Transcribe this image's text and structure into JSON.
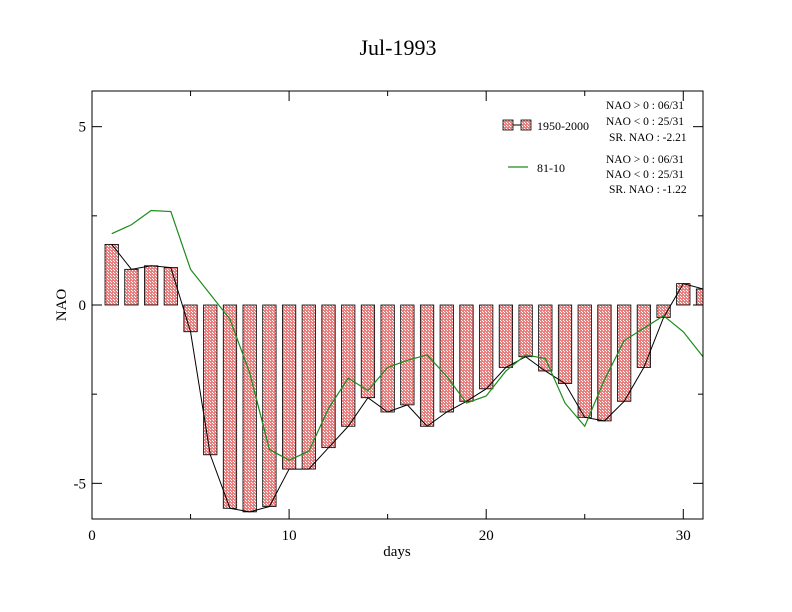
{
  "chart_data": {
    "type": "bar",
    "title": "Jul-1993",
    "xlabel": "days",
    "ylabel": "NAO",
    "xlim": [
      0,
      31
    ],
    "ylim": [
      -6,
      6
    ],
    "x_ticks": [
      0,
      10,
      20,
      30
    ],
    "y_ticks": [
      -5,
      0,
      5
    ],
    "x_tick_labels": [
      "0",
      "10",
      "20",
      "30"
    ],
    "y_tick_labels": [
      "-5",
      "0",
      "5"
    ],
    "x": [
      1,
      2,
      3,
      4,
      5,
      6,
      7,
      8,
      9,
      10,
      11,
      12,
      13,
      14,
      15,
      16,
      17,
      18,
      19,
      20,
      21,
      22,
      23,
      24,
      25,
      26,
      27,
      28,
      29,
      30,
      31
    ],
    "series": [
      {
        "name": "1950-2000",
        "type": "bar",
        "color": "#e07070",
        "values": [
          1.7,
          1.0,
          1.1,
          1.05,
          -0.75,
          -4.2,
          -5.7,
          -5.8,
          -5.65,
          -4.6,
          -4.6,
          -4.0,
          -3.4,
          -2.6,
          -3.0,
          -2.8,
          -3.4,
          -3.0,
          -2.7,
          -2.35,
          -1.75,
          -1.45,
          -1.85,
          -2.2,
          -3.15,
          -3.25,
          -2.7,
          -1.75,
          -0.35,
          0.6,
          0.45
        ]
      },
      {
        "name": "81-10",
        "type": "line",
        "color": "#1a8c1a",
        "values": [
          2.0,
          2.25,
          2.65,
          2.62,
          1.0,
          0.3,
          -0.4,
          -1.9,
          -4.05,
          -4.35,
          -4.1,
          -2.9,
          -2.05,
          -2.4,
          -1.75,
          -1.55,
          -1.4,
          -2.0,
          -2.75,
          -2.55,
          -1.85,
          -1.4,
          -1.5,
          -2.75,
          -3.4,
          -2.1,
          -1.0,
          -0.65,
          -0.3,
          -0.75,
          -1.45
        ]
      }
    ],
    "legend": {
      "placement": "top-right",
      "entries": [
        {
          "label": "1950-2000",
          "stats": [
            "NAO > 0 : 06/31",
            "NAO < 0 : 25/31",
            "SR. NAO : -2.21"
          ]
        },
        {
          "label": "81-10",
          "stats": [
            "NAO > 0 : 06/31",
            "NAO < 0 : 25/31",
            "SR. NAO : -1.22"
          ]
        }
      ]
    },
    "grid": false
  }
}
